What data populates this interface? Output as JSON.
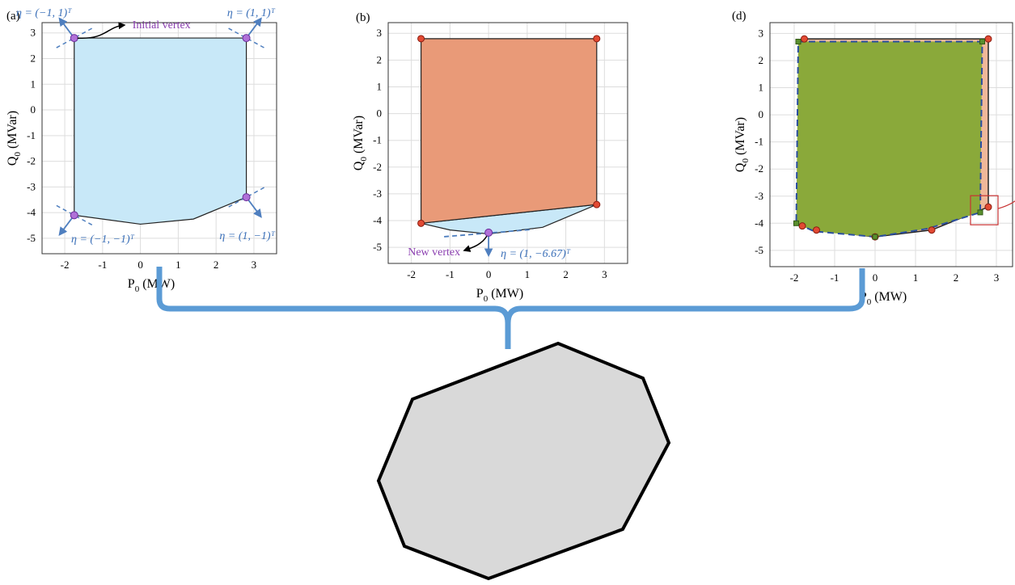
{
  "colors": {
    "a_fill": "#c8e8f8",
    "b_fill": "#e99a78",
    "b_blue": "#c8e8f8",
    "d_orange": "#f0b89a",
    "d_green": "#8aa93a",
    "vertex_purple": "#b070d8",
    "vertex_red": "#e24a33",
    "arrow_blue": "#4f7fbf",
    "text_blue": "#3a6fb8",
    "text_purple": "#8b3fb0",
    "brace": "#5b9bd5",
    "grid": "#dddddd",
    "poly_fill": "#d9d9d9"
  },
  "chart_data": [
    {
      "panel": "(a)",
      "type": "area",
      "xlabel": "P_0 (MW)",
      "ylabel": "Q_0 (MVar)",
      "xlim": [
        -2.6,
        3.6
      ],
      "ylim": [
        -5.6,
        3.4
      ],
      "xticks": [
        -2,
        -1,
        0,
        1,
        2,
        3
      ],
      "yticks": [
        -5,
        -4,
        -3,
        -2,
        -1,
        0,
        1,
        2,
        3
      ],
      "grid": true,
      "polygon": [
        [
          -1.75,
          2.8
        ],
        [
          2.8,
          2.8
        ],
        [
          2.8,
          -3.4
        ],
        [
          1.4,
          -4.25
        ],
        [
          0,
          -4.45
        ],
        [
          -1.75,
          -4.1
        ]
      ],
      "vertices": [
        [
          -1.75,
          2.8
        ],
        [
          2.8,
          2.8
        ],
        [
          -1.75,
          -4.1
        ],
        [
          2.8,
          -3.4
        ]
      ],
      "annotations": [
        {
          "text": "η = (−1, 1)ᵀ",
          "vertex": 0,
          "dx": -0.55,
          "dy": 0.75
        },
        {
          "text": "η = (1, 1)ᵀ",
          "vertex": 1,
          "dx": 0.5,
          "dy": 0.75
        },
        {
          "text": "η = (−1, −1)ᵀ",
          "vertex": 2,
          "dx": -0.55,
          "dy": -0.75
        },
        {
          "text": "η = (1, −1)ᵀ",
          "vertex": 3,
          "dx": 0.5,
          "dy": -0.8
        },
        {
          "text": "Initial vertex"
        }
      ]
    },
    {
      "panel": "(b)",
      "type": "area",
      "xlabel": "P_0 (MW)",
      "ylabel": "Q_0 (MVar)",
      "xlim": [
        -2.6,
        3.6
      ],
      "ylim": [
        -5.6,
        3.4
      ],
      "xticks": [
        -2,
        -1,
        0,
        1,
        2,
        3
      ],
      "yticks": [
        -5,
        -4,
        -3,
        -2,
        -1,
        0,
        1,
        2,
        3
      ],
      "grid": true,
      "polygon": [
        [
          -1.75,
          2.8
        ],
        [
          2.8,
          2.8
        ],
        [
          2.8,
          -3.4
        ],
        [
          -1.75,
          -4.1
        ]
      ],
      "extra_region": [
        [
          -1.75,
          -4.1
        ],
        [
          2.8,
          -3.4
        ],
        [
          1.4,
          -4.25
        ],
        [
          0,
          -4.5
        ],
        [
          -1.0,
          -4.35
        ]
      ],
      "vertices": [
        [
          -1.75,
          2.8
        ],
        [
          2.8,
          2.8
        ],
        [
          -1.75,
          -4.1
        ],
        [
          2.8,
          -3.4
        ]
      ],
      "new_vertex": [
        0,
        -4.45
      ],
      "annotations": [
        {
          "text": "η = (1, −6.67)ᵀ"
        },
        {
          "text": "New vertex"
        }
      ]
    },
    {
      "panel": "(d)",
      "type": "area",
      "xlabel": "P_0 (MW)",
      "ylabel": "Q_0 (MVar)",
      "xlim": [
        -2.6,
        3.4
      ],
      "ylim": [
        -5.6,
        3.4
      ],
      "xticks": [
        -2,
        -1,
        0,
        1,
        2,
        3
      ],
      "yticks": [
        -5,
        -4,
        -3,
        -2,
        -1,
        0,
        1,
        2,
        3
      ],
      "grid": true,
      "outer_polygon": [
        [
          -1.75,
          2.8
        ],
        [
          2.8,
          2.8
        ],
        [
          2.8,
          -3.4
        ],
        [
          1.4,
          -4.25
        ],
        [
          0,
          -4.5
        ],
        [
          -1.45,
          -4.25
        ],
        [
          -1.8,
          -4.1
        ]
      ],
      "inner_polygon": [
        [
          -1.9,
          2.7
        ],
        [
          2.65,
          2.7
        ],
        [
          2.6,
          -3.6
        ],
        [
          1.3,
          -4.2
        ],
        [
          0,
          -4.5
        ],
        [
          -1.5,
          -4.3
        ],
        [
          -1.95,
          -4.0
        ]
      ],
      "red_points": [
        [
          -1.75,
          2.8
        ],
        [
          2.8,
          2.8
        ],
        [
          2.8,
          -3.4
        ],
        [
          1.4,
          -4.25
        ],
        [
          0,
          -4.5
        ],
        [
          -1.45,
          -4.25
        ],
        [
          -1.8,
          -4.1
        ]
      ],
      "green_points": [
        [
          -1.9,
          2.7
        ],
        [
          2.65,
          2.7
        ],
        [
          2.6,
          -3.6
        ],
        [
          -1.95,
          -4.0
        ],
        [
          0,
          -4.5
        ]
      ]
    }
  ],
  "labels": {
    "panel_a": "(a)",
    "panel_b": "(b)",
    "panel_d": "(d)",
    "xlabel_P": "P",
    "xlabel_sub": "0",
    "xlabel_unit": " (MW)",
    "ylabel_Q": "Q",
    "ylabel_sub": "0",
    "ylabel_unit": " (MVar)",
    "initial_vertex": "Initial vertex",
    "new_vertex": "New vertex",
    "eta_a1": "η = (−1, 1)ᵀ",
    "eta_a2": "η = (1, 1)ᵀ",
    "eta_a3": "η = (−1, −1)ᵀ",
    "eta_a4": "η = (1, −1)ᵀ",
    "eta_b": "η = (1, −6.67)ᵀ"
  }
}
